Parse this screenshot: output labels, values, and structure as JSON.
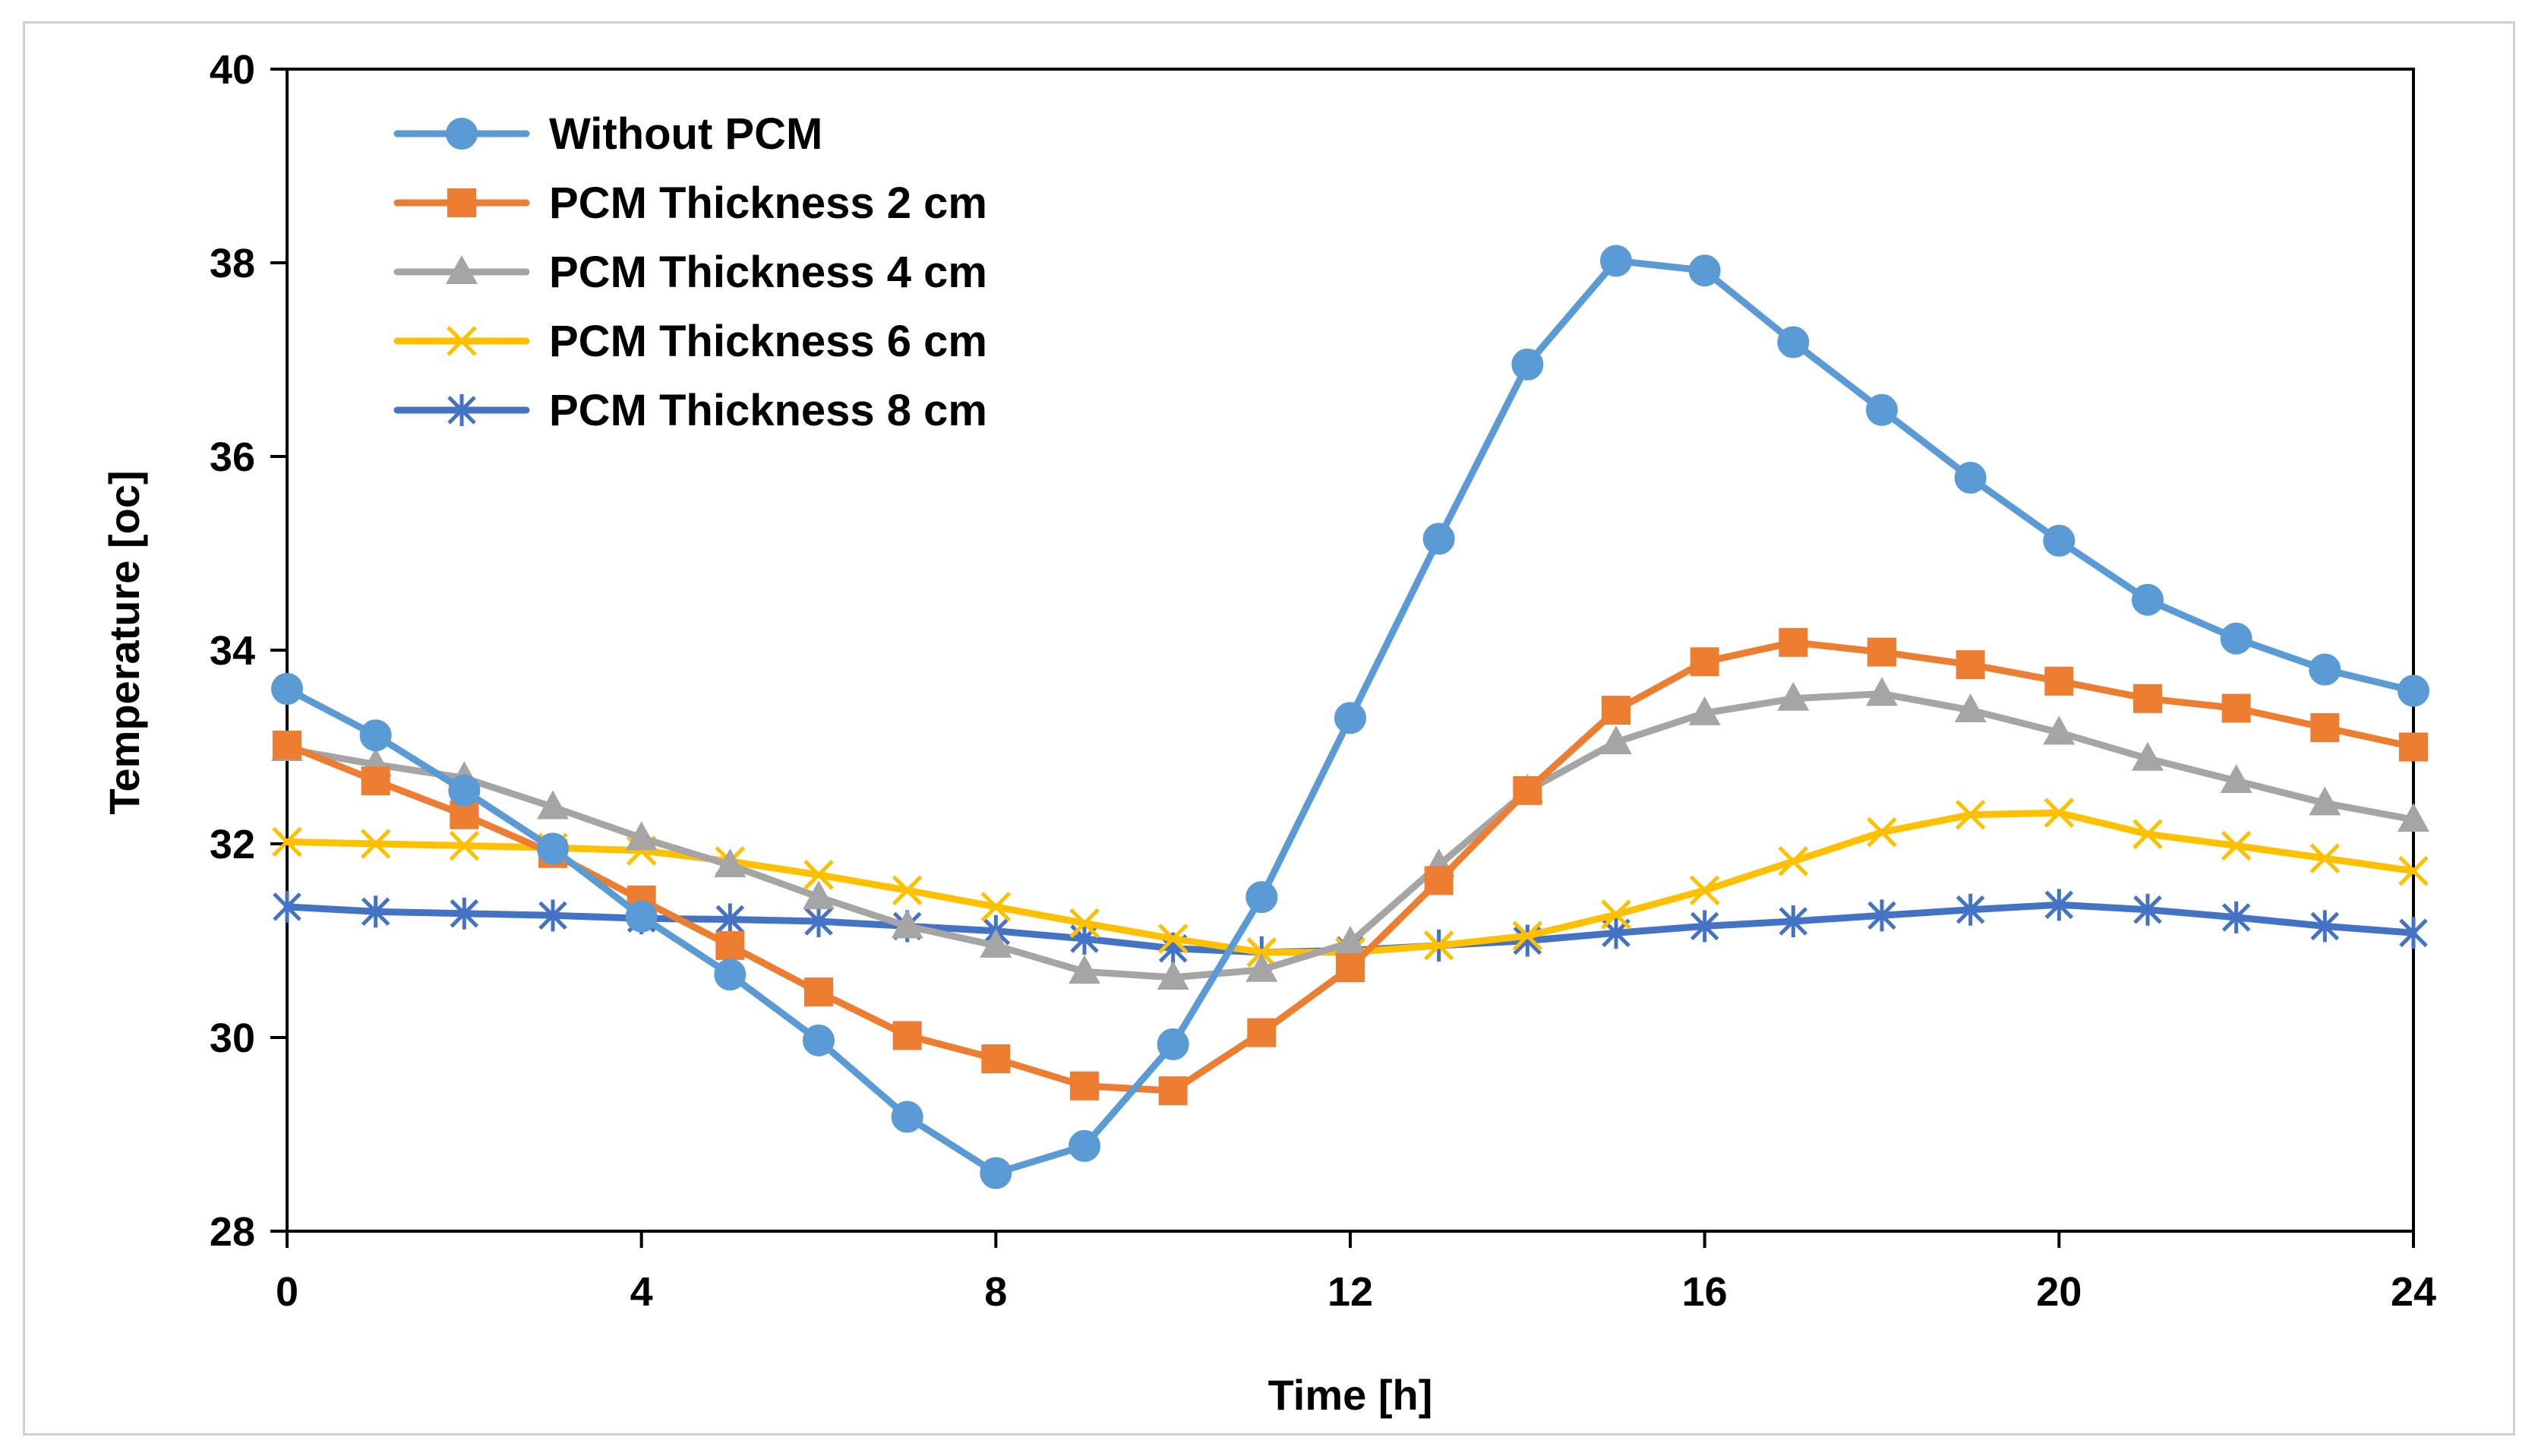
{
  "chart_data": {
    "type": "line",
    "title": "",
    "xlabel": "Time [h]",
    "ylabel": "Temperature [oc]",
    "xlim": [
      0,
      24
    ],
    "ylim": [
      28,
      40
    ],
    "x_ticks": [
      "0",
      "4",
      "8",
      "12",
      "16",
      "20",
      "24"
    ],
    "y_ticks": [
      "28",
      "30",
      "32",
      "34",
      "36",
      "38",
      "40"
    ],
    "grid": false,
    "legend_position": "top-left",
    "x": [
      0,
      1,
      2,
      3,
      4,
      5,
      6,
      7,
      8,
      9,
      10,
      11,
      12,
      13,
      14,
      15,
      16,
      17,
      18,
      19,
      20,
      21,
      22,
      23,
      24
    ],
    "series": [
      {
        "name": "Without PCM",
        "color": "#5B9BD5",
        "marker": "circle",
        "values": [
          33.6,
          33.12,
          32.55,
          31.95,
          31.25,
          30.65,
          29.97,
          29.18,
          28.6,
          28.88,
          29.93,
          31.45,
          33.3,
          35.15,
          36.95,
          38.02,
          37.92,
          37.18,
          36.48,
          35.78,
          35.13,
          34.52,
          34.12,
          33.8,
          33.58
        ]
      },
      {
        "name": "PCM Thickness 2 cm",
        "color": "#ED7D31",
        "marker": "square",
        "values": [
          33.02,
          32.65,
          32.3,
          31.9,
          31.42,
          30.95,
          30.47,
          30.02,
          29.78,
          29.5,
          29.45,
          30.05,
          30.72,
          31.62,
          32.55,
          33.38,
          33.88,
          34.08,
          33.98,
          33.85,
          33.68,
          33.5,
          33.4,
          33.2,
          33.0
        ]
      },
      {
        "name": "PCM Thickness 4 cm",
        "color": "#A5A5A5",
        "marker": "triangle",
        "values": [
          32.98,
          32.82,
          32.68,
          32.38,
          32.06,
          31.78,
          31.45,
          31.15,
          30.95,
          30.68,
          30.62,
          30.7,
          30.98,
          31.78,
          32.55,
          33.05,
          33.35,
          33.5,
          33.55,
          33.38,
          33.15,
          32.88,
          32.65,
          32.42,
          32.25
        ]
      },
      {
        "name": "PCM Thickness 6 cm",
        "color": "#FFC000",
        "marker": "x",
        "values": [
          32.02,
          32.0,
          31.98,
          31.96,
          31.93,
          31.82,
          31.68,
          31.52,
          31.35,
          31.18,
          31.02,
          30.88,
          30.88,
          30.95,
          31.05,
          31.27,
          31.52,
          31.82,
          32.12,
          32.3,
          32.32,
          32.1,
          31.98,
          31.85,
          31.72
        ]
      },
      {
        "name": "PCM Thickness 8 cm",
        "color": "#4472C4",
        "marker": "asterisk",
        "values": [
          31.35,
          31.3,
          31.28,
          31.26,
          31.23,
          31.22,
          31.2,
          31.15,
          31.1,
          31.02,
          30.92,
          30.88,
          30.9,
          30.95,
          31.0,
          31.08,
          31.15,
          31.2,
          31.26,
          31.32,
          31.37,
          31.32,
          31.24,
          31.15,
          31.08
        ]
      }
    ]
  }
}
